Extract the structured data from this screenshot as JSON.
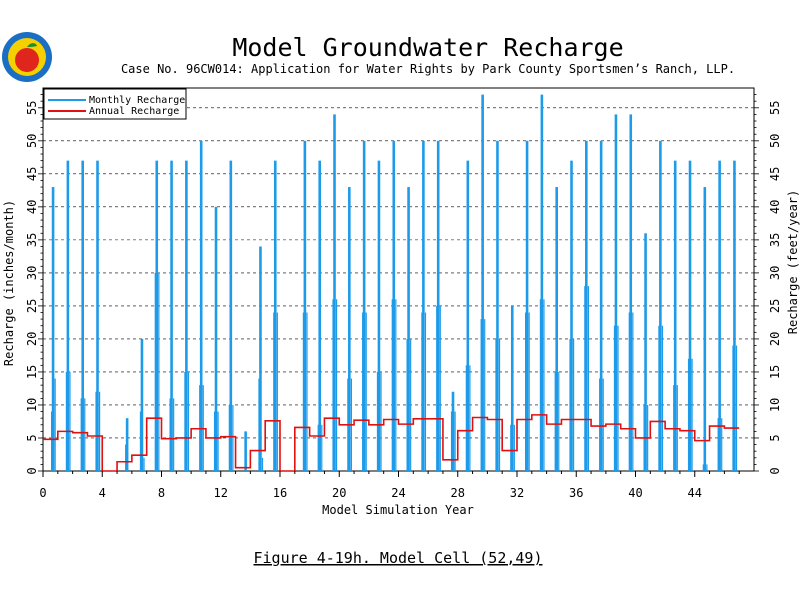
{
  "logo": {
    "name": "apple-seal-logo",
    "colors": {
      "ring": "#1a6fc4",
      "fill": "#f5d000",
      "apple": "#e0261c",
      "leaf": "#1f8f2a"
    }
  },
  "header": {
    "title": "Model Groundwater Recharge",
    "subtitle": "Case No. 96CW014: Application for Water Rights by Park County Sportsmen’s Ranch, LLP."
  },
  "caption": "Figure 4-19h.  Model Cell (52,49)",
  "colors": {
    "monthly": "#1e9be8",
    "annual": "#e01010",
    "grid": "#000000"
  },
  "chart_data": {
    "type": "bar",
    "xlabel": "Model Simulation Year",
    "ylabel": "Recharge (inches/month)",
    "y2label": "Recharge (feet/year)",
    "xlim": [
      0,
      48
    ],
    "ylim": [
      0,
      58
    ],
    "y2lim": [
      0,
      58
    ],
    "x_ticks": [
      "0",
      "4",
      "8",
      "12",
      "16",
      "20",
      "24",
      "28",
      "32",
      "36",
      "40",
      "44"
    ],
    "y_ticks": [
      "0",
      "5",
      "10",
      "15",
      "20",
      "25",
      "30",
      "35",
      "40",
      "45",
      "50",
      "55"
    ],
    "y2_ticks": [
      "0",
      "5",
      "10",
      "15",
      "20",
      "25",
      "30",
      "35",
      "40",
      "45",
      "50",
      "55"
    ],
    "grid": "horizontal dashed at y ticks",
    "legend_position": "top-left",
    "series": [
      {
        "name": "Monthly Recharge",
        "type": "bar",
        "description_units": "inches/month",
        "peaks": [
          {
            "year": 0,
            "v": [
              9,
              43,
              14,
              0
            ]
          },
          {
            "year": 1,
            "v": [
              15,
              47,
              15,
              0
            ]
          },
          {
            "year": 2,
            "v": [
              11,
              47,
              11,
              0
            ]
          },
          {
            "year": 3,
            "v": [
              12,
              47,
              12,
              0
            ]
          },
          {
            "year": 4,
            "v": [
              0,
              0,
              0,
              0
            ]
          },
          {
            "year": 5,
            "v": [
              4,
              8,
              0,
              0
            ]
          },
          {
            "year": 6,
            "v": [
              9,
              20,
              2,
              0
            ]
          },
          {
            "year": 7,
            "v": [
              30,
              47,
              30,
              0
            ]
          },
          {
            "year": 8,
            "v": [
              11,
              47,
              11,
              0
            ]
          },
          {
            "year": 9,
            "v": [
              15,
              47,
              15,
              0
            ]
          },
          {
            "year": 10,
            "v": [
              13,
              50,
              13,
              0
            ]
          },
          {
            "year": 11,
            "v": [
              9,
              40,
              9,
              0
            ]
          },
          {
            "year": 12,
            "v": [
              10,
              47,
              10,
              0
            ]
          },
          {
            "year": 13,
            "v": [
              0,
              6,
              0,
              0
            ]
          },
          {
            "year": 14,
            "v": [
              14,
              34,
              2,
              0
            ]
          },
          {
            "year": 15,
            "v": [
              24,
              47,
              24,
              0
            ]
          },
          {
            "year": 16,
            "v": [
              0,
              0,
              0,
              0
            ]
          },
          {
            "year": 17,
            "v": [
              24,
              50,
              24,
              0
            ]
          },
          {
            "year": 18,
            "v": [
              7,
              47,
              7,
              0
            ]
          },
          {
            "year": 19,
            "v": [
              26,
              54,
              26,
              0
            ]
          },
          {
            "year": 20,
            "v": [
              14,
              43,
              14,
              0
            ]
          },
          {
            "year": 21,
            "v": [
              24,
              50,
              24,
              0
            ]
          },
          {
            "year": 22,
            "v": [
              15,
              47,
              15,
              0
            ]
          },
          {
            "year": 23,
            "v": [
              26,
              50,
              26,
              0
            ]
          },
          {
            "year": 24,
            "v": [
              20,
              43,
              20,
              0
            ]
          },
          {
            "year": 25,
            "v": [
              24,
              50,
              24,
              0
            ]
          },
          {
            "year": 26,
            "v": [
              25,
              50,
              25,
              0
            ]
          },
          {
            "year": 27,
            "v": [
              9,
              12,
              9,
              0
            ]
          },
          {
            "year": 28,
            "v": [
              16,
              47,
              16,
              0
            ]
          },
          {
            "year": 29,
            "v": [
              23,
              57,
              23,
              0
            ]
          },
          {
            "year": 30,
            "v": [
              20,
              50,
              20,
              0
            ]
          },
          {
            "year": 31,
            "v": [
              7,
              25,
              7,
              0
            ]
          },
          {
            "year": 32,
            "v": [
              24,
              50,
              24,
              0
            ]
          },
          {
            "year": 33,
            "v": [
              26,
              57,
              26,
              0
            ]
          },
          {
            "year": 34,
            "v": [
              15,
              43,
              15,
              0
            ]
          },
          {
            "year": 35,
            "v": [
              20,
              47,
              20,
              0
            ]
          },
          {
            "year": 36,
            "v": [
              28,
              50,
              28,
              0
            ]
          },
          {
            "year": 37,
            "v": [
              14,
              50,
              14,
              0
            ]
          },
          {
            "year": 38,
            "v": [
              22,
              54,
              22,
              0
            ]
          },
          {
            "year": 39,
            "v": [
              24,
              54,
              24,
              0
            ]
          },
          {
            "year": 40,
            "v": [
              10,
              36,
              10,
              0
            ]
          },
          {
            "year": 41,
            "v": [
              22,
              50,
              22,
              0
            ]
          },
          {
            "year": 42,
            "v": [
              13,
              47,
              13,
              0
            ]
          },
          {
            "year": 43,
            "v": [
              17,
              47,
              17,
              0
            ]
          },
          {
            "year": 44,
            "v": [
              1,
              43,
              1,
              0
            ]
          },
          {
            "year": 45,
            "v": [
              8,
              47,
              8,
              0
            ]
          },
          {
            "year": 46,
            "v": [
              19,
              47,
              19,
              0
            ]
          }
        ]
      },
      {
        "name": "Annual Recharge",
        "type": "step",
        "description_units": "feet/year",
        "x": [
          0,
          1,
          2,
          3,
          4,
          5,
          6,
          7,
          8,
          9,
          10,
          11,
          12,
          13,
          14,
          15,
          16,
          17,
          18,
          19,
          20,
          21,
          22,
          23,
          24,
          25,
          26,
          27,
          28,
          29,
          30,
          31,
          32,
          33,
          34,
          35,
          36,
          37,
          38,
          39,
          40,
          41,
          42,
          43,
          44,
          45,
          46
        ],
        "values": [
          4.8,
          6.0,
          5.8,
          5.3,
          0.0,
          1.4,
          2.4,
          8.0,
          4.9,
          5.0,
          6.4,
          5.0,
          5.2,
          0.5,
          3.1,
          7.6,
          0.0,
          6.6,
          5.3,
          8.0,
          7.0,
          7.7,
          7.0,
          7.8,
          7.1,
          7.9,
          7.9,
          1.7,
          6.1,
          8.1,
          7.8,
          3.1,
          7.8,
          8.5,
          7.1,
          7.8,
          7.8,
          6.8,
          7.1,
          6.4,
          5.0,
          7.5,
          6.4,
          6.1,
          4.6,
          6.8,
          6.5
        ]
      }
    ]
  }
}
